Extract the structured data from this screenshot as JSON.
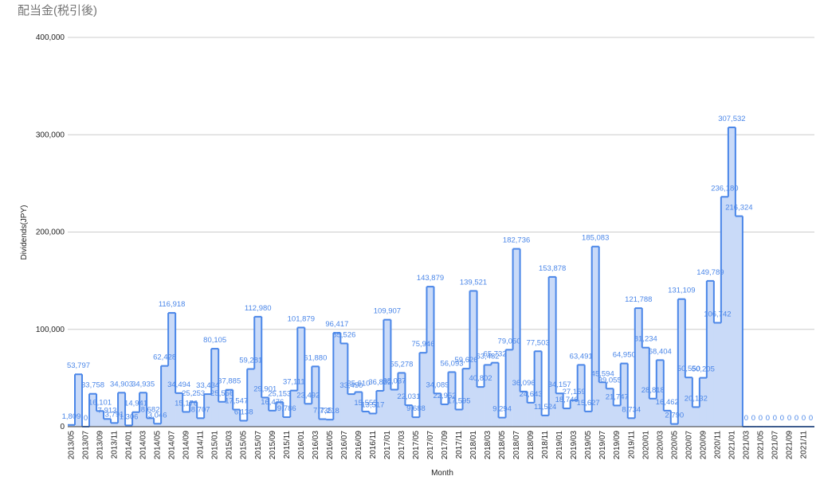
{
  "chart_data": {
    "type": "stepped-area",
    "title": "配当金(税引後)",
    "x_label": "Month",
    "y_label": "Dividends(JPY)",
    "categories": [
      "2013/05",
      null,
      "2013/07",
      null,
      "2013/09",
      null,
      "2013/11",
      null,
      "2014/01",
      null,
      "2014/03",
      null,
      "2014/05",
      null,
      "2014/07",
      null,
      "2014/09",
      null,
      "2014/11",
      null,
      "2015/01",
      null,
      "2015/03",
      null,
      "2015/05",
      null,
      "2015/07",
      null,
      "2015/09",
      null,
      "2015/11",
      null,
      "2016/01",
      null,
      "2016/03",
      null,
      "2016/05",
      null,
      "2016/07",
      null,
      "2016/09",
      null,
      "2016/11",
      null,
      "2017/01",
      null,
      "2017/03",
      null,
      "2017/05",
      null,
      "2017/07",
      null,
      "2017/09",
      null,
      "2017/11",
      null,
      "2018/01",
      null,
      "2018/03",
      null,
      "2018/05",
      null,
      "2018/07",
      null,
      "2018/09",
      null,
      "2018/11",
      null,
      "2019/01",
      null,
      "2019/03",
      null,
      "2019/05",
      null,
      "2019/07",
      null,
      "2019/09",
      null,
      "2019/11",
      null,
      "2020/01",
      null,
      "2020/03",
      null,
      "2020/05",
      null,
      "2020/07",
      null,
      "2020/09",
      null,
      "2020/11",
      null,
      "2021/01",
      null,
      "2021/03",
      null,
      "2021/05",
      null,
      "2021/07",
      null,
      "2021/09",
      null,
      "2021/11",
      null
    ],
    "values": [
      1809,
      53797,
      0,
      33758,
      16101,
      7913,
      3791,
      34903,
      1306,
      14941,
      34935,
      8682,
      3046,
      62428,
      116918,
      34494,
      15176,
      25253,
      8707,
      33434,
      80105,
      25556,
      37885,
      17547,
      6138,
      59281,
      112980,
      29901,
      16476,
      25153,
      9786,
      37111,
      101879,
      23492,
      61880,
      7735,
      7218,
      96417,
      85526,
      33450,
      35610,
      15555,
      13517,
      36832,
      109907,
      38037,
      55278,
      22031,
      9688,
      75946,
      143879,
      34089,
      22952,
      56093,
      17595,
      59626,
      139521,
      40802,
      63482,
      65732,
      9294,
      79050,
      182736,
      36096,
      24643,
      77503,
      11524,
      153878,
      34157,
      18746,
      27159,
      63491,
      15627,
      185083,
      45594,
      39055,
      21747,
      64950,
      8734,
      121788,
      81234,
      28818,
      68404,
      16462,
      2790,
      131109,
      50550,
      20132,
      50205,
      149789,
      106742,
      236180,
      307532,
      216324,
      0,
      0,
      0,
      0,
      0,
      0,
      0,
      0,
      0,
      0
    ],
    "value_labels": [
      "1,809",
      "53,797",
      "0",
      "33,758",
      "16,101",
      "7,913",
      "3,791",
      "34,903",
      "1,306",
      "14,941",
      "34,935",
      "8,682",
      "3,046",
      "62,428",
      "116,918",
      "34,494",
      "15,176",
      "25,253",
      "8,707",
      "33,434",
      "80,105",
      "25,556",
      "37,885",
      "17,547",
      "6,138",
      "59,281",
      "112,980",
      "29,901",
      "16,476",
      "25,153",
      "9,786",
      "37,111",
      "101,879",
      "23,492",
      "61,880",
      "7,735",
      "7,218",
      "96,417",
      "85,526",
      "33,450",
      "35,610",
      "15,555",
      "13,517",
      "36,832",
      "109,907",
      "38,037",
      "55,278",
      "22,031",
      "9,688",
      "75,946",
      "143,879",
      "34,089",
      "22,952",
      "56,093",
      "17,595",
      "59,626",
      "139,521",
      "40,802",
      "63,482",
      "65,732",
      "9,294",
      "79,050",
      "182,736",
      "36,096",
      "24,643",
      "77,503",
      "11,524",
      "153,878",
      "34,157",
      "18,746",
      "27,159",
      "63,491",
      "15,627",
      "185,083",
      "45,594",
      "39,055",
      "21,747",
      "64,950",
      "8,734",
      "121,788",
      "81,234",
      "28,818",
      "68,404",
      "16,462",
      "2,790",
      "131,109",
      "50,550",
      "20,132",
      "50,205",
      "149,789",
      "106,742",
      "236,180",
      "307,532",
      "216,324",
      "0",
      "0",
      "0",
      "0",
      "0",
      "0",
      "0",
      "0",
      "0",
      "0"
    ],
    "color": "#4a86e8",
    "fill": "#c9daf8",
    "ylim": [
      0,
      400000
    ],
    "yticks": [
      0,
      {
        "value": 100000,
        "label": "100,000"
      },
      {
        "value": 200000,
        "label": "200,000"
      },
      {
        "value": 300000,
        "label": "300,000"
      },
      {
        "value": 400000,
        "label": "400,000"
      }
    ],
    "grid": true
  }
}
